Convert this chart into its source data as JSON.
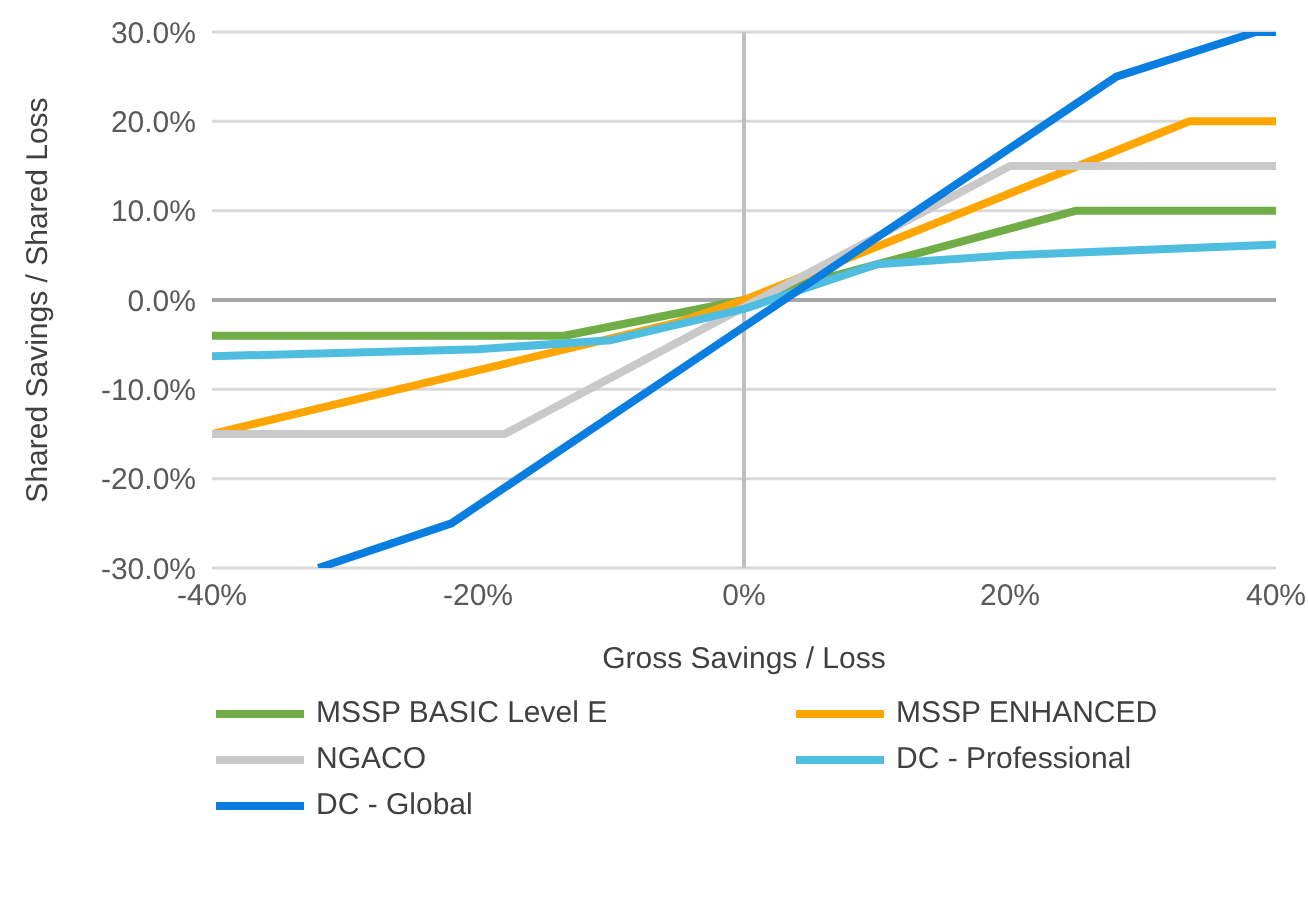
{
  "chart_data": {
    "type": "line",
    "xlabel": "Gross Savings / Loss",
    "ylabel": "Shared Savings / Shared Loss",
    "xlim": [
      -40,
      40
    ],
    "xticks": [
      {
        "value": -40,
        "label": "-40%"
      },
      {
        "value": -20,
        "label": "-20%"
      },
      {
        "value": 0,
        "label": "0%"
      },
      {
        "value": 20,
        "label": "20%"
      },
      {
        "value": 40,
        "label": "40%"
      }
    ],
    "ylim": [
      -30,
      30
    ],
    "yticks": [
      {
        "value": -30,
        "label": "-30.0%"
      },
      {
        "value": -20,
        "label": "-20.0%"
      },
      {
        "value": -10,
        "label": "-10.0%"
      },
      {
        "value": 0,
        "label": "0.0%"
      },
      {
        "value": 10,
        "label": "10.0%"
      },
      {
        "value": 20,
        "label": "20.0%"
      },
      {
        "value": 30,
        "label": "30.0%"
      }
    ],
    "grid": "y",
    "legend": "bottom",
    "marker": "none",
    "ref_lines": [
      {
        "axis": "x",
        "value": 0,
        "color": "#bfbfbf"
      },
      {
        "axis": "y",
        "value": 0,
        "color": "#a6a6a6"
      }
    ],
    "series": [
      {
        "name": "MSSP BASIC Level E",
        "color": "#70ad47",
        "x": [
          -40,
          -13.5,
          0,
          25,
          40
        ],
        "values": [
          -4,
          -4,
          0,
          10,
          10
        ]
      },
      {
        "name": "MSSP ENHANCED",
        "color": "#ffa500",
        "x": [
          -40,
          -5,
          0,
          33.5,
          40
        ],
        "values": [
          -15,
          -2.5,
          0,
          20,
          20
        ]
      },
      {
        "name": "NGACO",
        "color": "#c9c9c9",
        "x": [
          -40,
          -18,
          0,
          20,
          40
        ],
        "values": [
          -15,
          -15,
          -0.8,
          15,
          15
        ]
      },
      {
        "name": "DC - Professional",
        "color": "#4fbde0",
        "x": [
          -40,
          -20,
          -10,
          0,
          10,
          20,
          40
        ],
        "values": [
          -6.3,
          -5.5,
          -4.5,
          -1,
          4,
          5,
          6.2
        ]
      },
      {
        "name": "DC - Global",
        "color": "#0a7ee0",
        "x": [
          -32,
          -22,
          0,
          28,
          38.5,
          40
        ],
        "values": [
          -30,
          -25,
          -3,
          25,
          30,
          30
        ]
      }
    ]
  }
}
